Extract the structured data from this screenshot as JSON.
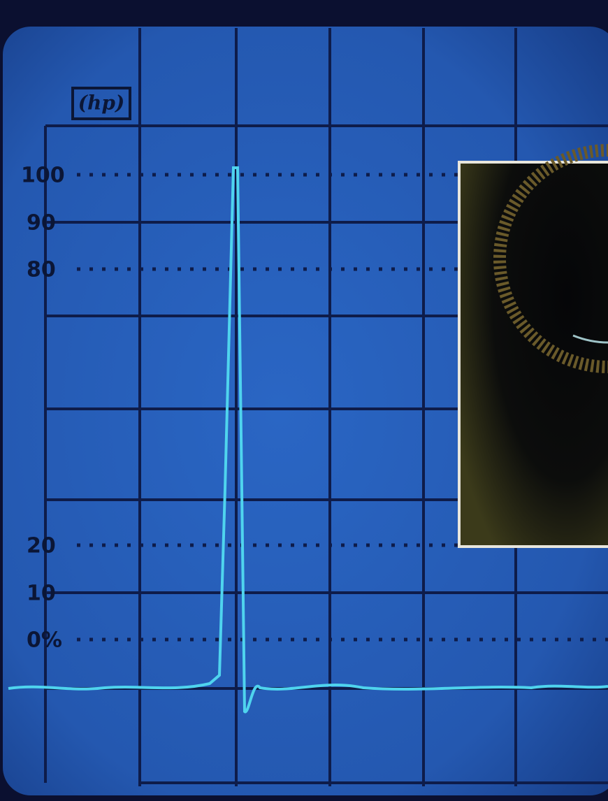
{
  "screen": {
    "logo": "(hp)",
    "scale_labels": [
      "100",
      "90",
      "80",
      "20",
      "10",
      "0%"
    ]
  }
}
